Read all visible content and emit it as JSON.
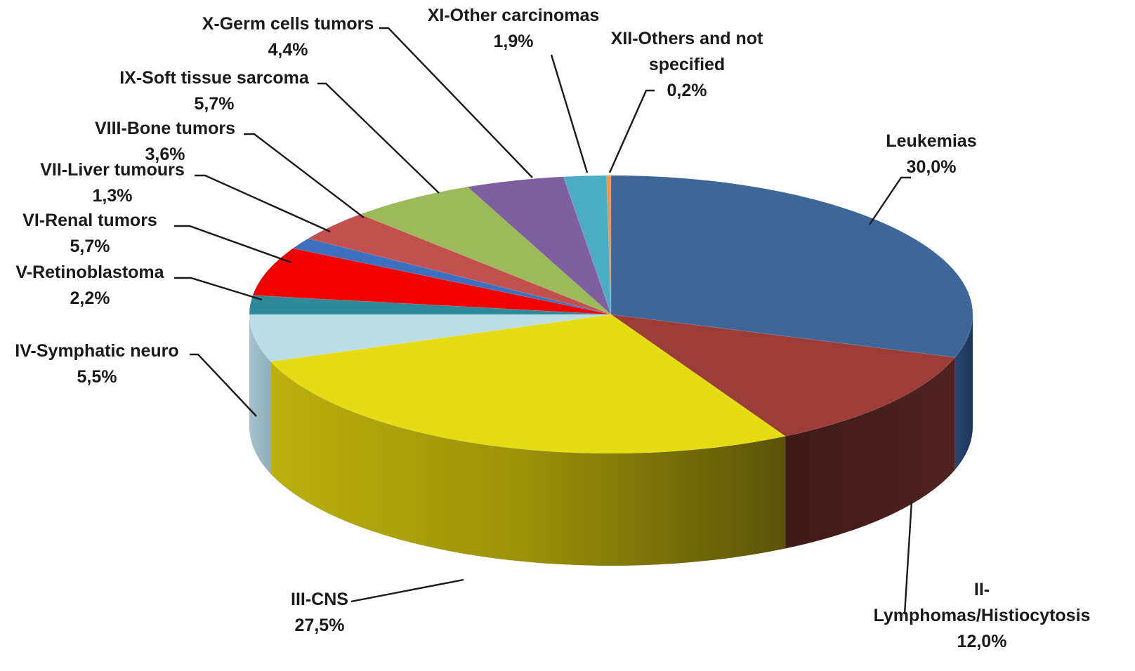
{
  "chart_data": {
    "type": "pie",
    "style": "3d",
    "slices": [
      {
        "label": "Leukemias",
        "value": 30.0,
        "display": "30,0%",
        "color": "#3E6699"
      },
      {
        "label": "II-Lymphomas/Histiocytosis",
        "display_lines": [
          "II-",
          "Lymphomas/Histiocytosis"
        ],
        "value": 12.0,
        "display": "12,0%",
        "color": "#9C3D39"
      },
      {
        "label": "III-CNS",
        "value": 27.5,
        "display": "27,5%",
        "color": "#E6DC13"
      },
      {
        "label": "IV-Symphatic neuro",
        "value": 5.5,
        "display": "5,5%",
        "color": "#BCDDE6"
      },
      {
        "label": "V-Retinoblastoma",
        "value": 2.2,
        "display": "2,2%",
        "color": "#2E8A99"
      },
      {
        "label": "VI-Renal tumors",
        "value": 5.7,
        "display": "5,7%",
        "color": "#F20000"
      },
      {
        "label": "VII-Liver tumours",
        "value": 1.3,
        "display": "1,3%",
        "color": "#3C70BE"
      },
      {
        "label": "VIII-Bone tumors",
        "value": 3.6,
        "display": "3,6%",
        "color": "#C2504D"
      },
      {
        "label": "IX-Soft tissue sarcoma",
        "value": 5.7,
        "display": "5,7%",
        "color": "#9BBA59"
      },
      {
        "label": "X-Germ cells tumors",
        "value": 4.4,
        "display": "4,4%",
        "color": "#7E5FA0"
      },
      {
        "label": "XI-Other carcinomas",
        "value": 1.9,
        "display": "1,9%",
        "color": "#4BACC6"
      },
      {
        "label": "XII-Others and not specified",
        "display_lines": [
          "XII-Others and not",
          "specified"
        ],
        "value": 0.2,
        "display": "0,2%",
        "color": "#F79646"
      }
    ]
  }
}
